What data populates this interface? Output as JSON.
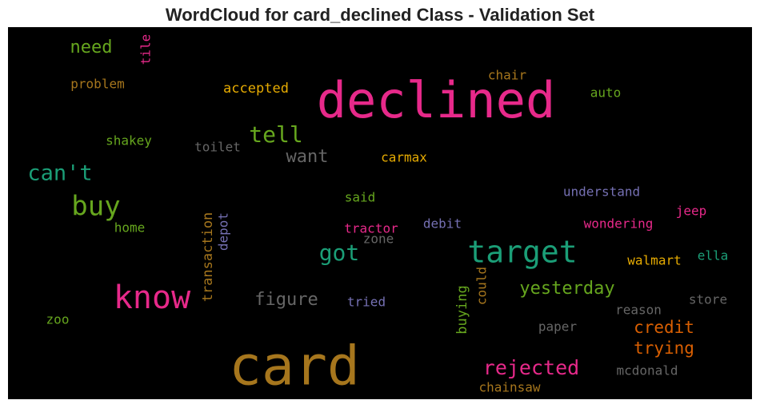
{
  "chart_data": {
    "type": "wordcloud",
    "title": "WordCloud for card_declined Class - Validation Set",
    "background": "#000000",
    "words": [
      {
        "text": "declined",
        "color": "#e7298a"
      },
      {
        "text": "card",
        "color": "#a6761d"
      },
      {
        "text": "know",
        "color": "#e7298a"
      },
      {
        "text": "target",
        "color": "#1b9e77"
      },
      {
        "text": "buy",
        "color": "#66a61e"
      },
      {
        "text": "can't",
        "color": "#1b9e77"
      },
      {
        "text": "tell",
        "color": "#66a61e"
      },
      {
        "text": "got",
        "color": "#1b9e77"
      },
      {
        "text": "rejected",
        "color": "#e7298a"
      },
      {
        "text": "yesterday",
        "color": "#66a61e"
      },
      {
        "text": "credit",
        "color": "#d95f02"
      },
      {
        "text": "trying",
        "color": "#d95f02"
      },
      {
        "text": "figure",
        "color": "#666666"
      },
      {
        "text": "want",
        "color": "#666666"
      },
      {
        "text": "need",
        "color": "#66a61e"
      },
      {
        "text": "accepted",
        "color": "#e6ab02"
      },
      {
        "text": "problem",
        "color": "#a6761d"
      },
      {
        "text": "shakey",
        "color": "#66a61e"
      },
      {
        "text": "toilet",
        "color": "#666666"
      },
      {
        "text": "carmax",
        "color": "#e6ab02"
      },
      {
        "text": "chair",
        "color": "#a6761d"
      },
      {
        "text": "auto",
        "color": "#66a61e"
      },
      {
        "text": "understand",
        "color": "#7570b3"
      },
      {
        "text": "said",
        "color": "#66a61e"
      },
      {
        "text": "jeep",
        "color": "#e7298a"
      },
      {
        "text": "wondering",
        "color": "#e7298a"
      },
      {
        "text": "debit",
        "color": "#7570b3"
      },
      {
        "text": "tractor",
        "color": "#e7298a"
      },
      {
        "text": "zone",
        "color": "#666666"
      },
      {
        "text": "home",
        "color": "#66a61e"
      },
      {
        "text": "walmart",
        "color": "#e6ab02"
      },
      {
        "text": "ella",
        "color": "#1b9e77"
      },
      {
        "text": "tried",
        "color": "#7570b3"
      },
      {
        "text": "reason",
        "color": "#666666"
      },
      {
        "text": "store",
        "color": "#666666"
      },
      {
        "text": "paper",
        "color": "#666666"
      },
      {
        "text": "mcdonald",
        "color": "#666666"
      },
      {
        "text": "chainsaw",
        "color": "#a6761d"
      },
      {
        "text": "zoo",
        "color": "#66a61e"
      },
      {
        "text": "tile",
        "color": "#e7298a"
      },
      {
        "text": "transaction",
        "color": "#a6761d"
      },
      {
        "text": "depot",
        "color": "#7570b3"
      },
      {
        "text": "buying",
        "color": "#66a61e"
      },
      {
        "text": "could",
        "color": "#a6761d"
      }
    ]
  }
}
